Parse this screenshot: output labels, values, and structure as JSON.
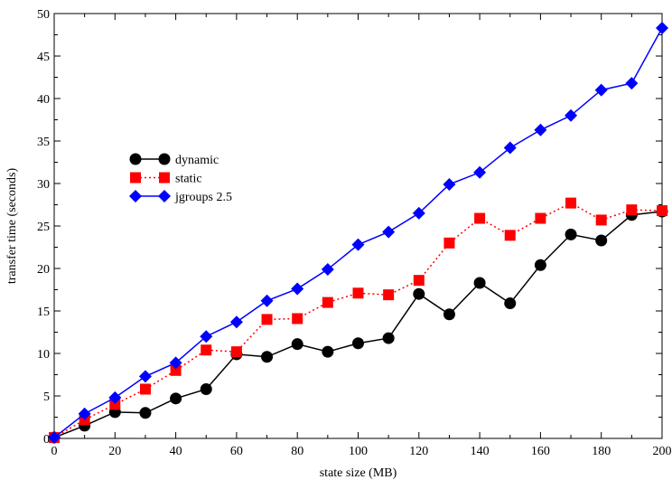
{
  "chart_data": {
    "type": "line",
    "xlabel": "state size (MB)",
    "ylabel": "transfer time (seconds)",
    "xlim": [
      0,
      200
    ],
    "ylim": [
      0,
      50
    ],
    "xticks": [
      0,
      20,
      40,
      60,
      80,
      100,
      120,
      140,
      160,
      180,
      200
    ],
    "yticks": [
      0,
      5,
      10,
      15,
      20,
      25,
      30,
      35,
      40,
      45,
      50
    ],
    "legend_position": "left-center",
    "grid": false,
    "x": [
      0,
      10,
      20,
      30,
      40,
      50,
      60,
      70,
      80,
      90,
      100,
      110,
      120,
      130,
      140,
      150,
      160,
      170,
      180,
      190,
      200
    ],
    "series": [
      {
        "name": "dynamic",
        "color": "#000000",
        "marker": "circle",
        "line_style": "solid",
        "values": [
          0.1,
          1.5,
          3.1,
          3.0,
          4.7,
          5.8,
          9.9,
          9.6,
          11.1,
          10.2,
          11.2,
          11.8,
          17.0,
          14.6,
          18.3,
          15.9,
          20.4,
          24.0,
          23.3,
          26.3,
          26.7
        ]
      },
      {
        "name": "static",
        "color": "#ff0000",
        "marker": "square",
        "line_style": "dotted",
        "values": [
          0.1,
          2.2,
          4.0,
          5.8,
          8.0,
          10.4,
          10.2,
          14.0,
          14.1,
          16.0,
          17.1,
          16.9,
          18.6,
          23.0,
          25.9,
          23.9,
          25.9,
          27.7,
          25.7,
          26.9,
          26.8
        ]
      },
      {
        "name": "jgroups 2.5",
        "color": "#0000ff",
        "marker": "diamond",
        "line_style": "solid",
        "values": [
          0.1,
          2.9,
          4.8,
          7.3,
          8.9,
          12.0,
          13.7,
          16.2,
          17.6,
          19.9,
          22.8,
          24.3,
          26.5,
          29.9,
          31.3,
          34.2,
          36.3,
          38.0,
          41.0,
          41.8,
          48.3
        ]
      }
    ]
  }
}
